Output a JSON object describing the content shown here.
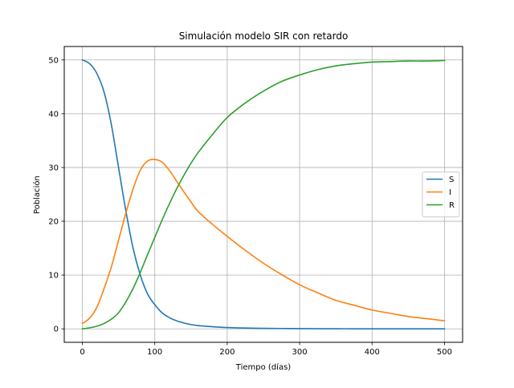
{
  "chart_data": {
    "type": "line",
    "title": "Simulación modelo SIR con retardo",
    "xlabel": "Tiempo (días)",
    "ylabel": "Población",
    "xlim": [
      -25,
      525
    ],
    "ylim": [
      -2.5,
      52.5
    ],
    "xticks": [
      0,
      100,
      200,
      300,
      400,
      500
    ],
    "yticks": [
      0,
      10,
      20,
      30,
      40,
      50
    ],
    "grid": true,
    "legend_position": "center-right",
    "x": [
      0,
      10,
      20,
      30,
      40,
      50,
      60,
      70,
      80,
      90,
      100,
      110,
      120,
      130,
      140,
      150,
      160,
      180,
      200,
      225,
      250,
      275,
      300,
      325,
      350,
      375,
      400,
      425,
      450,
      475,
      500
    ],
    "series": [
      {
        "name": "S",
        "color": "#1f77b4",
        "values": [
          50,
          49.3,
          47.5,
          44,
          38,
          30,
          22,
          15,
          10,
          6.5,
          4.5,
          3,
          2.1,
          1.5,
          1.1,
          0.8,
          0.6,
          0.4,
          0.25,
          0.15,
          0.1,
          0.07,
          0.05,
          0.03,
          0.02,
          0.01,
          0.01,
          0,
          0,
          0,
          0
        ]
      },
      {
        "name": "I",
        "color": "#ff7f0e",
        "values": [
          1,
          2,
          4,
          7.5,
          11.5,
          16.5,
          21.5,
          26,
          29.5,
          31.2,
          31.5,
          31,
          29.5,
          27.5,
          25.5,
          23.6,
          21.8,
          19.4,
          17.2,
          14.6,
          12.2,
          10.1,
          8.2,
          6.7,
          5.3,
          4.4,
          3.5,
          2.9,
          2.3,
          1.9,
          1.5
        ]
      },
      {
        "name": "R",
        "color": "#2ca02c",
        "values": [
          0,
          0.2,
          0.5,
          1,
          1.8,
          3,
          5,
          7.5,
          10.5,
          13.8,
          17,
          20.2,
          23.2,
          26,
          28.5,
          30.8,
          32.8,
          36.2,
          39.3,
          42,
          44.2,
          46,
          47.2,
          48.2,
          48.9,
          49.3,
          49.6,
          49.7,
          49.8,
          49.8,
          49.9
        ]
      }
    ]
  }
}
